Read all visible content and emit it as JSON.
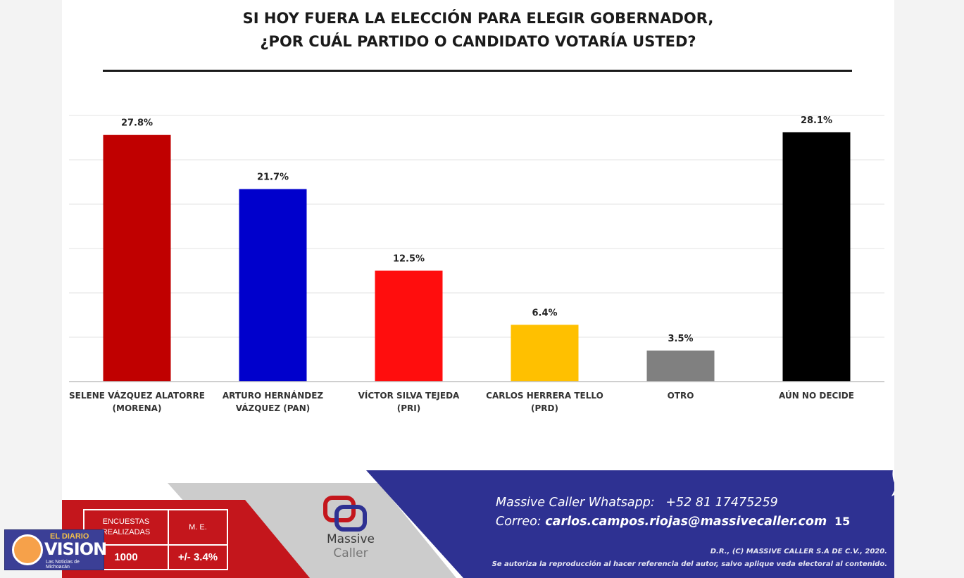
{
  "title": {
    "line1": "SI HOY FUERA LA ELECCIÓN PARA ELEGIR GOBERNADOR,",
    "line2": "¿POR CUÁL PARTIDO O CANDIDATO VOTARÍA USTED?"
  },
  "chart_data": {
    "type": "bar",
    "title": "SI HOY FUERA LA ELECCIÓN PARA ELEGIR GOBERNADOR, ¿POR CUÁL PARTIDO O CANDIDATO VOTARÍA USTED?",
    "categories": [
      [
        "SELENE VÁZQUEZ ALATORRE",
        "(MORENA)"
      ],
      [
        "ARTURO HERNÁNDEZ",
        "VÁZQUEZ (PAN)"
      ],
      [
        "VÍCTOR SILVA TEJEDA",
        "(PRI)"
      ],
      [
        "CARLOS HERRERA TELLO",
        "(PRD)"
      ],
      [
        "OTRO"
      ],
      [
        "AÚN NO DECIDE"
      ]
    ],
    "values": [
      27.8,
      21.7,
      12.5,
      6.4,
      3.5,
      28.1
    ],
    "value_labels": [
      "27.8%",
      "21.7%",
      "12.5%",
      "6.4%",
      "3.5%",
      "28.1%"
    ],
    "colors": [
      "#c00000",
      "#0000cc",
      "#ff0d0d",
      "#ffc000",
      "#808080",
      "#000000"
    ],
    "ylim": [
      0,
      30
    ],
    "gridlines": [
      5,
      10,
      15,
      20,
      25,
      30
    ],
    "grid": true,
    "xlabel": "",
    "ylabel": ""
  },
  "footer": {
    "table": {
      "header_left": "ENCUESTAS REALIZADAS",
      "header_right": "M. E.",
      "value_left": "1000",
      "value_right": "+/- 3.4%"
    },
    "brand": {
      "name_line1": "Massive",
      "name_line2": "Caller"
    },
    "contact": {
      "whatsapp_label": "Massive Caller Whatsapp:",
      "whatsapp_number": "+52 81 17475259",
      "email_label": "Correo:",
      "email": "carlos.campos.riojas@massivecaller.com"
    },
    "page_number": "15",
    "legal_line1": "D.R., (C) MASSIVE CALLER S.A DE C.V., 2020.",
    "legal_line2": "Se autoriza la reproducción al hacer referencia del autor, salvo aplique veda electoral al contenido.",
    "colors": {
      "red": "#c4161c",
      "navy": "#2e3192",
      "gray": "#cfcfcf",
      "whatsapp": "#25d366"
    }
  },
  "watermark": {
    "top": "EL DIARIO",
    "main": "VISION",
    "sub": "Las Noticias de Michoacán"
  }
}
